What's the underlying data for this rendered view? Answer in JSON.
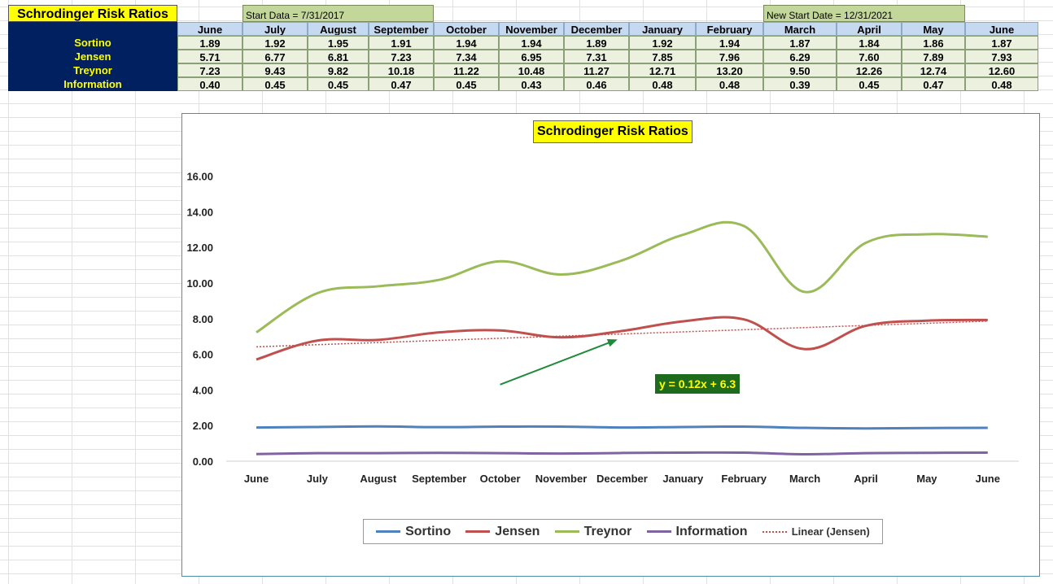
{
  "sheet": {
    "title": "Schrodinger Risk Ratios",
    "start_label": "Start Data = 7/31/2017",
    "new_start_label": "New Start Date = 12/31/2021",
    "months": [
      "June",
      "July",
      "August",
      "September",
      "October",
      "November",
      "December",
      "January",
      "February",
      "March",
      "April",
      "May",
      "June"
    ],
    "rows": [
      {
        "label": "Sortino",
        "values": [
          "1.89",
          "1.92",
          "1.95",
          "1.91",
          "1.94",
          "1.94",
          "1.89",
          "1.92",
          "1.94",
          "1.87",
          "1.84",
          "1.86",
          "1.87"
        ]
      },
      {
        "label": "Jensen",
        "values": [
          "5.71",
          "6.77",
          "6.81",
          "7.23",
          "7.34",
          "6.95",
          "7.31",
          "7.85",
          "7.96",
          "6.29",
          "7.60",
          "7.89",
          "7.93"
        ]
      },
      {
        "label": "Treynor",
        "values": [
          "7.23",
          "9.43",
          "9.82",
          "10.18",
          "11.22",
          "10.48",
          "11.27",
          "12.71",
          "13.20",
          "9.50",
          "12.26",
          "12.74",
          "12.60"
        ]
      },
      {
        "label": "Information",
        "values": [
          "0.40",
          "0.45",
          "0.45",
          "0.47",
          "0.45",
          "0.43",
          "0.46",
          "0.48",
          "0.48",
          "0.39",
          "0.45",
          "0.47",
          "0.48"
        ]
      }
    ]
  },
  "chart_data": {
    "type": "line",
    "title": "Schrodinger Risk Ratios",
    "categories": [
      "June",
      "July",
      "August",
      "September",
      "October",
      "November",
      "December",
      "January",
      "February",
      "March",
      "April",
      "May",
      "June"
    ],
    "series": [
      {
        "name": "Sortino",
        "color": "#4f81bd",
        "values": [
          1.89,
          1.92,
          1.95,
          1.91,
          1.94,
          1.94,
          1.89,
          1.92,
          1.94,
          1.87,
          1.84,
          1.86,
          1.87
        ]
      },
      {
        "name": "Jensen",
        "color": "#c0504d",
        "values": [
          5.71,
          6.77,
          6.81,
          7.23,
          7.34,
          6.95,
          7.31,
          7.85,
          7.96,
          6.29,
          7.6,
          7.89,
          7.93
        ]
      },
      {
        "name": "Treynor",
        "color": "#9bbb59",
        "values": [
          7.23,
          9.43,
          9.82,
          10.18,
          11.22,
          10.48,
          11.27,
          12.71,
          13.2,
          9.5,
          12.26,
          12.74,
          12.6
        ]
      },
      {
        "name": "Information",
        "color": "#8064a2",
        "values": [
          0.4,
          0.45,
          0.45,
          0.47,
          0.45,
          0.43,
          0.46,
          0.48,
          0.48,
          0.39,
          0.45,
          0.47,
          0.48
        ]
      }
    ],
    "trendline": {
      "name": "Linear (Jensen)",
      "color": "#c0504d",
      "slope": 0.12,
      "intercept": 6.3,
      "equation": "y = 0.12x + 6.3"
    },
    "ylim": [
      0,
      16
    ],
    "yticks": [
      "0.00",
      "2.00",
      "4.00",
      "6.00",
      "8.00",
      "10.00",
      "12.00",
      "14.00",
      "16.00"
    ],
    "grid": false,
    "legend_position": "bottom",
    "annotation": {
      "type": "arrow",
      "color": "#1e8a3a",
      "from": {
        "x": 4.0,
        "y": 4.3
      },
      "to": {
        "x": 5.9,
        "y": 6.8
      }
    }
  }
}
